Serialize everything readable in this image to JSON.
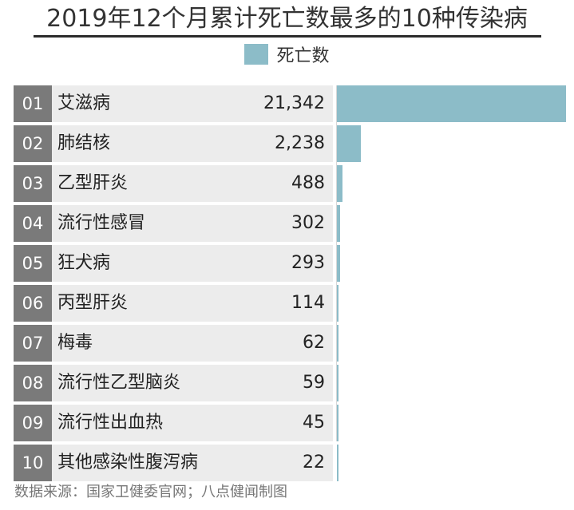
{
  "title": "2019年12个月累计死亡数最多的10种传染病",
  "legend": {
    "label": "死亡数",
    "color": "#8cbcc8"
  },
  "source": "数据来源：国家卫健委官网；八点健闻制图",
  "colors": {
    "bar": "#8cbcc8",
    "rank_bg": "#7a7a7a",
    "row_bg": "#ececec"
  },
  "chart_data": {
    "type": "bar",
    "orientation": "horizontal",
    "title": "2019年12个月累计死亡数最多的10种传染病",
    "series": [
      {
        "name": "死亡数"
      }
    ],
    "ranks": [
      "01",
      "02",
      "03",
      "04",
      "05",
      "06",
      "07",
      "08",
      "09",
      "10"
    ],
    "categories": [
      "艾滋病",
      "肺结核",
      "乙型肝炎",
      "流行性感冒",
      "狂犬病",
      "丙型肝炎",
      "梅毒",
      "流行性乙型脑炎",
      "流行性出血热",
      "其他感染性腹泻病"
    ],
    "labels": [
      "21,342",
      "2,238",
      "488",
      "302",
      "293",
      "114",
      "62",
      "59",
      "45",
      "22"
    ],
    "values": [
      21342,
      2238,
      488,
      302,
      293,
      114,
      62,
      59,
      45,
      22
    ],
    "xlim": [
      0,
      21342
    ]
  }
}
